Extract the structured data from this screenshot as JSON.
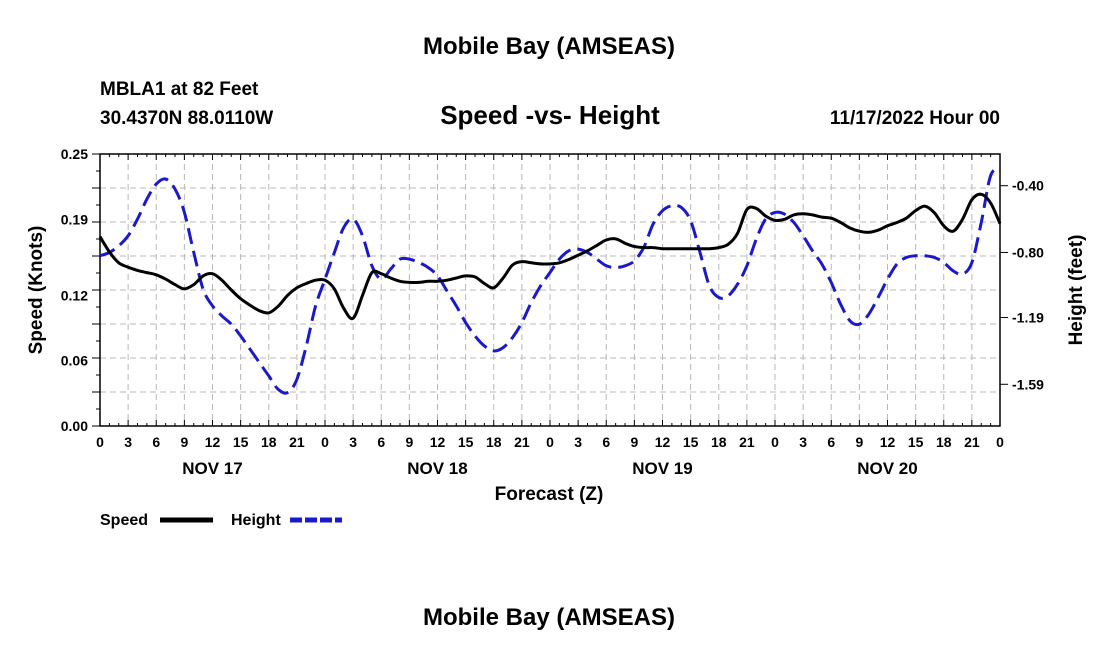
{
  "titles": {
    "main": "Mobile Bay (AMSEAS)",
    "subtitle": "Speed -vs- Height",
    "station": "MBLA1 at 82 Feet",
    "coords": "30.4370N  88.0110W",
    "datetime": "11/17/2022 Hour 00",
    "footer": "Mobile Bay (AMSEAS)"
  },
  "colors": {
    "speed": "#000000",
    "height": "#1a1acc"
  },
  "chart_data": {
    "type": "line",
    "title": "Speed -vs- Height",
    "xlabel": "Forecast (Z)",
    "ylabel": "Speed (Knots)",
    "y2label": "Height (feet)",
    "xlim": [
      0,
      96
    ],
    "ylim": [
      0,
      0.25
    ],
    "y2lim": [
      -1.84,
      -0.21
    ],
    "x_tick_labels": [
      "0",
      "3",
      "6",
      "9",
      "12",
      "15",
      "18",
      "21",
      "0",
      "3",
      "6",
      "9",
      "12",
      "15",
      "18",
      "21",
      "0",
      "3",
      "6",
      "9",
      "12",
      "15",
      "18",
      "21",
      "0",
      "3",
      "6",
      "9",
      "12",
      "15",
      "18",
      "21",
      "0"
    ],
    "x_tick_hours": [
      0,
      3,
      6,
      9,
      12,
      15,
      18,
      21,
      24,
      27,
      30,
      33,
      36,
      39,
      42,
      45,
      48,
      51,
      54,
      57,
      60,
      63,
      66,
      69,
      72,
      75,
      78,
      81,
      84,
      87,
      90,
      93,
      96
    ],
    "y_ticks": [
      0.0,
      0.06,
      0.12,
      0.19,
      0.25
    ],
    "y_tick_labels": [
      "0.00",
      "0.06",
      "0.12",
      "0.19",
      "0.25"
    ],
    "y2_ticks": [
      -1.59,
      -1.19,
      -0.8,
      -0.4
    ],
    "y2_tick_labels": [
      "-1.59",
      "-1.19",
      "-0.80",
      "-0.40"
    ],
    "date_labels": [
      {
        "text": "NOV 17",
        "hour": 12
      },
      {
        "text": "NOV 18",
        "hour": 36
      },
      {
        "text": "NOV 19",
        "hour": 60
      },
      {
        "text": "NOV 20",
        "hour": 84
      }
    ],
    "legend": [
      "Speed",
      "Height"
    ],
    "series": [
      {
        "name": "Speed",
        "axis": "left",
        "style": "solid",
        "x": [
          0,
          1,
          2,
          3,
          4,
          5,
          6,
          7,
          8,
          9,
          10,
          11,
          12,
          13,
          14,
          15,
          16,
          17,
          18,
          19,
          20,
          21,
          22,
          23,
          24,
          25,
          26,
          27,
          28,
          29,
          30,
          31,
          32,
          33,
          34,
          35,
          36,
          37,
          38,
          39,
          40,
          41,
          42,
          43,
          44,
          45,
          46,
          47,
          48,
          49,
          50,
          51,
          52,
          53,
          54,
          55,
          56,
          57,
          58,
          59,
          60,
          61,
          62,
          63,
          64,
          65,
          66,
          67,
          68,
          69,
          70,
          71,
          72,
          73,
          74,
          75,
          76,
          77,
          78,
          79,
          80,
          81,
          82,
          83,
          84,
          85,
          86,
          87,
          88,
          89,
          90,
          91,
          92,
          93,
          94,
          95,
          96
        ],
        "values": [
          0.174,
          0.16,
          0.15,
          0.146,
          0.143,
          0.141,
          0.139,
          0.135,
          0.13,
          0.126,
          0.13,
          0.138,
          0.14,
          0.134,
          0.125,
          0.117,
          0.111,
          0.106,
          0.104,
          0.11,
          0.12,
          0.127,
          0.131,
          0.134,
          0.134,
          0.126,
          0.108,
          0.099,
          0.12,
          0.141,
          0.14,
          0.136,
          0.133,
          0.132,
          0.132,
          0.133,
          0.133,
          0.134,
          0.136,
          0.138,
          0.137,
          0.131,
          0.127,
          0.136,
          0.148,
          0.151,
          0.15,
          0.149,
          0.149,
          0.15,
          0.153,
          0.157,
          0.161,
          0.166,
          0.171,
          0.172,
          0.168,
          0.165,
          0.164,
          0.164,
          0.163,
          0.163,
          0.163,
          0.163,
          0.163,
          0.163,
          0.164,
          0.167,
          0.177,
          0.199,
          0.2,
          0.193,
          0.189,
          0.19,
          0.194,
          0.195,
          0.194,
          0.192,
          0.191,
          0.187,
          0.182,
          0.179,
          0.178,
          0.18,
          0.184,
          0.187,
          0.191,
          0.198,
          0.202,
          0.196,
          0.184,
          0.179,
          0.19,
          0.208,
          0.213,
          0.205,
          0.186
        ]
      },
      {
        "name": "Height",
        "axis": "right",
        "style": "dashed",
        "x": [
          0,
          1,
          2,
          3,
          4,
          5,
          6,
          7,
          8,
          9,
          10,
          11,
          12,
          13,
          14,
          15,
          16,
          17,
          18,
          19,
          20,
          21,
          22,
          23,
          24,
          25,
          26,
          27,
          28,
          29,
          30,
          31,
          32,
          33,
          34,
          35,
          36,
          37,
          38,
          39,
          40,
          41,
          42,
          43,
          44,
          45,
          46,
          47,
          48,
          49,
          50,
          51,
          52,
          53,
          54,
          55,
          56,
          57,
          58,
          59,
          60,
          61,
          62,
          63,
          64,
          65,
          66,
          67,
          68,
          69,
          70,
          71,
          72,
          73,
          74,
          75,
          76,
          77,
          78,
          79,
          80,
          81,
          82,
          83,
          84,
          85,
          86,
          87,
          88,
          89,
          90,
          91,
          92,
          93,
          94,
          95,
          96
        ],
        "values": [
          -0.82,
          -0.8,
          -0.76,
          -0.7,
          -0.6,
          -0.48,
          -0.39,
          -0.36,
          -0.42,
          -0.56,
          -0.8,
          -1.02,
          -1.12,
          -1.18,
          -1.23,
          -1.3,
          -1.38,
          -1.46,
          -1.54,
          -1.62,
          -1.64,
          -1.56,
          -1.36,
          -1.12,
          -0.96,
          -0.8,
          -0.65,
          -0.6,
          -0.7,
          -0.88,
          -0.96,
          -0.9,
          -0.84,
          -0.84,
          -0.86,
          -0.89,
          -0.94,
          -1.03,
          -1.12,
          -1.22,
          -1.3,
          -1.36,
          -1.39,
          -1.37,
          -1.31,
          -1.22,
          -1.1,
          -1.0,
          -0.92,
          -0.84,
          -0.79,
          -0.78,
          -0.8,
          -0.84,
          -0.88,
          -0.89,
          -0.88,
          -0.85,
          -0.77,
          -0.63,
          -0.55,
          -0.52,
          -0.53,
          -0.61,
          -0.8,
          -1.0,
          -1.07,
          -1.06,
          -0.99,
          -0.88,
          -0.72,
          -0.6,
          -0.56,
          -0.57,
          -0.62,
          -0.7,
          -0.79,
          -0.87,
          -0.98,
          -1.11,
          -1.21,
          -1.23,
          -1.17,
          -1.07,
          -0.96,
          -0.87,
          -0.83,
          -0.82,
          -0.82,
          -0.83,
          -0.86,
          -0.91,
          -0.93,
          -0.86,
          -0.62,
          -0.34,
          -0.3
        ]
      }
    ]
  }
}
